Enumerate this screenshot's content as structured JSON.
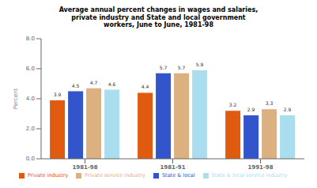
{
  "chart_data": {
    "type": "bar",
    "title": "Average annual percent changes in wages and salaries,\nprivate industry and State and local government\nworkers,  June to June, 1981-98",
    "categories": [
      "1981-98",
      "1981-91",
      "1991-98"
    ],
    "series": [
      {
        "name": "Private industry",
        "color": "#e05a10",
        "values": [
          3.9,
          4.4,
          3.2
        ]
      },
      {
        "name": "State & local",
        "color": "#3355cc",
        "values": [
          4.5,
          5.7,
          2.9
        ]
      },
      {
        "name": "Private service industry",
        "color": "#ddb080",
        "values": [
          4.7,
          5.7,
          3.3
        ]
      },
      {
        "name": "State & local service industry",
        "color": "#aaddee",
        "values": [
          4.6,
          5.9,
          2.9
        ]
      }
    ],
    "ylabel": "Percent",
    "ylim": [
      0.0,
      8.0
    ],
    "yticks": [
      {
        "value": 0,
        "label": "0.0"
      },
      {
        "value": 2,
        "label": "2.0"
      },
      {
        "value": 4,
        "label": "4.0"
      },
      {
        "value": 6,
        "label": "6.0"
      },
      {
        "value": 8,
        "label": "8.0"
      }
    ],
    "grid": false,
    "data_labels": true
  }
}
